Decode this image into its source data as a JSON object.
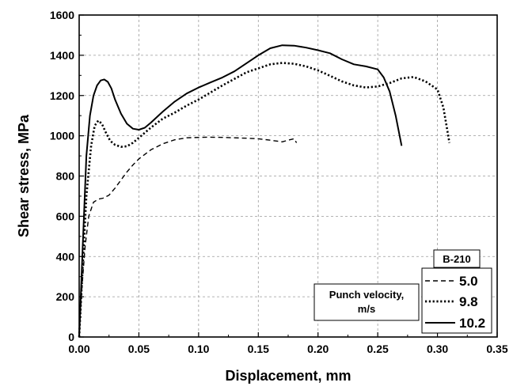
{
  "chart_data": {
    "type": "line",
    "title": "",
    "xlabel": "Displacement, mm",
    "ylabel": "Shear stress, MPa",
    "xlim": [
      0,
      0.35
    ],
    "ylim": [
      0,
      1600
    ],
    "x_ticks": [
      "0.00",
      "0.05",
      "0.10",
      "0.15",
      "0.20",
      "0.25",
      "0.30",
      "0.35"
    ],
    "y_ticks": [
      "0",
      "200",
      "400",
      "600",
      "800",
      "1000",
      "1200",
      "1400",
      "1600"
    ],
    "grid": true,
    "legend": {
      "title": "B-210",
      "subtitle": "Punch velocity, m/s",
      "subtitle_lines": [
        "Punch velocity,",
        "m/s"
      ],
      "placement": "bottom-right",
      "entries": [
        "5.0",
        "9.8",
        "10.2"
      ]
    },
    "series": [
      {
        "name": "5.0",
        "style": "dashed",
        "x": [
          0,
          0.002,
          0.005,
          0.008,
          0.012,
          0.016,
          0.02,
          0.025,
          0.03,
          0.035,
          0.04,
          0.045,
          0.05,
          0.06,
          0.07,
          0.08,
          0.09,
          0.1,
          0.11,
          0.12,
          0.13,
          0.14,
          0.15,
          0.16,
          0.17,
          0.175,
          0.18,
          0.182
        ],
        "values": [
          0,
          220,
          450,
          600,
          670,
          685,
          690,
          705,
          740,
          780,
          820,
          855,
          885,
          930,
          960,
          980,
          990,
          992,
          993,
          992,
          990,
          988,
          985,
          978,
          970,
          978,
          985,
          965
        ]
      },
      {
        "name": "9.8",
        "style": "dotted",
        "x": [
          0,
          0.003,
          0.006,
          0.01,
          0.013,
          0.016,
          0.019,
          0.022,
          0.026,
          0.03,
          0.035,
          0.04,
          0.045,
          0.05,
          0.06,
          0.07,
          0.08,
          0.09,
          0.1,
          0.12,
          0.14,
          0.16,
          0.17,
          0.18,
          0.19,
          0.2,
          0.21,
          0.22,
          0.23,
          0.24,
          0.25,
          0.26,
          0.27,
          0.28,
          0.29,
          0.3,
          0.305,
          0.31
        ],
        "values": [
          0,
          350,
          700,
          950,
          1050,
          1075,
          1060,
          1020,
          975,
          955,
          945,
          948,
          965,
          990,
          1040,
          1085,
          1115,
          1150,
          1180,
          1250,
          1315,
          1355,
          1362,
          1358,
          1345,
          1325,
          1298,
          1270,
          1250,
          1240,
          1245,
          1262,
          1285,
          1292,
          1270,
          1230,
          1140,
          965
        ]
      },
      {
        "name": "10.2",
        "style": "solid",
        "x": [
          0,
          0.003,
          0.006,
          0.009,
          0.012,
          0.015,
          0.018,
          0.021,
          0.024,
          0.027,
          0.03,
          0.035,
          0.04,
          0.045,
          0.05,
          0.055,
          0.06,
          0.07,
          0.08,
          0.09,
          0.1,
          0.11,
          0.12,
          0.13,
          0.14,
          0.15,
          0.16,
          0.17,
          0.18,
          0.19,
          0.2,
          0.21,
          0.22,
          0.23,
          0.24,
          0.25,
          0.255,
          0.26,
          0.265,
          0.27
        ],
        "values": [
          0,
          450,
          900,
          1100,
          1200,
          1250,
          1275,
          1280,
          1268,
          1235,
          1180,
          1110,
          1060,
          1035,
          1030,
          1040,
          1065,
          1120,
          1170,
          1210,
          1240,
          1265,
          1290,
          1320,
          1360,
          1400,
          1435,
          1450,
          1448,
          1438,
          1425,
          1410,
          1380,
          1355,
          1345,
          1330,
          1290,
          1220,
          1100,
          950
        ]
      }
    ]
  }
}
